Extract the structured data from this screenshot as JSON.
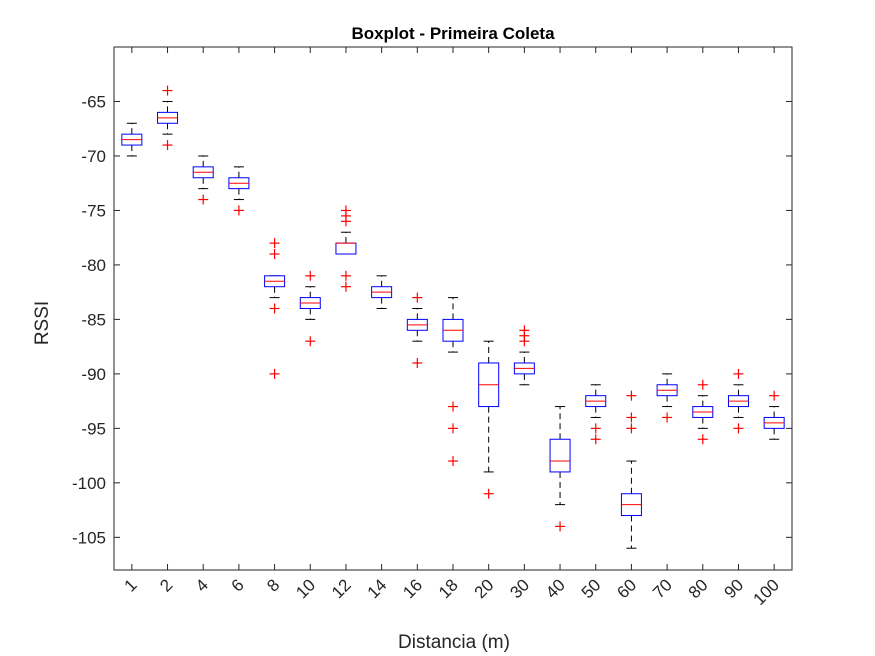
{
  "chart_data": {
    "type": "boxplot",
    "title": "Boxplot - Primeira Coleta",
    "xlabel": "Distancia (m)",
    "ylabel": "RSSI",
    "ylim": [
      -108,
      -60
    ],
    "yticks": [
      -65,
      -70,
      -75,
      -80,
      -85,
      -90,
      -95,
      -100,
      -105
    ],
    "grid": false,
    "colors": {
      "box": "#0000ff",
      "median": "#ff0000",
      "whisker": "#000000",
      "outlier": "#ff0000",
      "axis": "#262626"
    },
    "categories": [
      "1",
      "2",
      "4",
      "6",
      "8",
      "10",
      "12",
      "14",
      "16",
      "18",
      "20",
      "30",
      "40",
      "50",
      "60",
      "70",
      "80",
      "90",
      "100"
    ],
    "boxes": [
      {
        "min": -70,
        "q1": -69,
        "median": -68.5,
        "q3": -68,
        "max": -67,
        "outliers": []
      },
      {
        "min": -68,
        "q1": -67,
        "median": -66.5,
        "q3": -66,
        "max": -65,
        "outliers": [
          -64,
          -69
        ]
      },
      {
        "min": -73,
        "q1": -72,
        "median": -71.5,
        "q3": -71,
        "max": -70,
        "outliers": [
          -74
        ]
      },
      {
        "min": -74,
        "q1": -73,
        "median": -72.5,
        "q3": -72,
        "max": -71,
        "outliers": [
          -75
        ]
      },
      {
        "min": -83,
        "q1": -82,
        "median": -81.5,
        "q3": -81,
        "max": -81,
        "outliers": [
          -78,
          -79,
          -84,
          -90
        ]
      },
      {
        "min": -85,
        "q1": -84,
        "median": -83.5,
        "q3": -83,
        "max": -82,
        "outliers": [
          -81,
          -87
        ]
      },
      {
        "min": -79,
        "q1": -79,
        "median": -78,
        "q3": -78,
        "max": -77,
        "outliers": [
          -75,
          -75.5,
          -76,
          -81,
          -82
        ]
      },
      {
        "min": -84,
        "q1": -83,
        "median": -82.5,
        "q3": -82,
        "max": -81,
        "outliers": []
      },
      {
        "min": -87,
        "q1": -86,
        "median": -85.5,
        "q3": -85,
        "max": -84,
        "outliers": [
          -83,
          -89
        ]
      },
      {
        "min": -88,
        "q1": -87,
        "median": -86,
        "q3": -85,
        "max": -83,
        "outliers": [
          -93,
          -95,
          -98
        ]
      },
      {
        "min": -99,
        "q1": -93,
        "median": -91,
        "q3": -89,
        "max": -87,
        "outliers": [
          -101
        ]
      },
      {
        "min": -91,
        "q1": -90,
        "median": -89.5,
        "q3": -89,
        "max": -88,
        "outliers": [
          -86,
          -86.5,
          -87
        ]
      },
      {
        "min": -102,
        "q1": -99,
        "median": -98,
        "q3": -96,
        "max": -93,
        "outliers": [
          -104
        ]
      },
      {
        "min": -94,
        "q1": -93,
        "median": -92.5,
        "q3": -92,
        "max": -91,
        "outliers": [
          -95,
          -96
        ]
      },
      {
        "min": -106,
        "q1": -103,
        "median": -102,
        "q3": -101,
        "max": -98,
        "outliers": [
          -92,
          -94,
          -95
        ]
      },
      {
        "min": -93,
        "q1": -92,
        "median": -91.5,
        "q3": -91,
        "max": -90,
        "outliers": [
          -94
        ]
      },
      {
        "min": -95,
        "q1": -94,
        "median": -93.5,
        "q3": -93,
        "max": -92,
        "outliers": [
          -91,
          -96
        ]
      },
      {
        "min": -94,
        "q1": -93,
        "median": -92.5,
        "q3": -92,
        "max": -91,
        "outliers": [
          -90,
          -95
        ]
      },
      {
        "min": -96,
        "q1": -95,
        "median": -94.5,
        "q3": -94,
        "max": -93,
        "outliers": [
          -92
        ]
      }
    ]
  }
}
